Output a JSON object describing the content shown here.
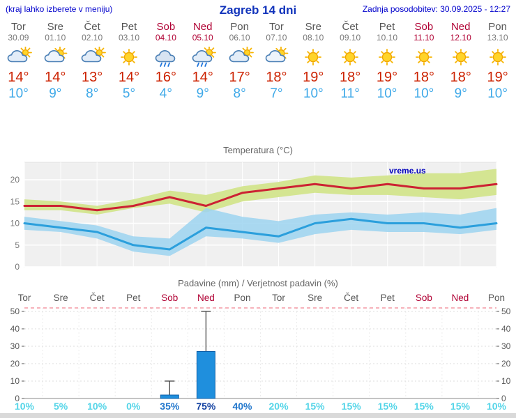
{
  "header": {
    "left_note": "(kraj lahko izberete v meniju)",
    "title": "Zagreb 14 dni",
    "last_update": "Zadnja posodobitev: 30.09.2025 - 12:27"
  },
  "days": [
    {
      "name": "Tor",
      "date": "30.09",
      "weekend": false,
      "icon": "cloudy",
      "tmax": "14°",
      "tmin": "10°",
      "prob": "10%",
      "prob_level": "low"
    },
    {
      "name": "Sre",
      "date": "01.10",
      "weekend": false,
      "icon": "partly-cloudy",
      "tmax": "14°",
      "tmin": "9°",
      "prob": "5%",
      "prob_level": "low"
    },
    {
      "name": "Čet",
      "date": "02.10",
      "weekend": false,
      "icon": "cloudy",
      "tmax": "13°",
      "tmin": "8°",
      "prob": "10%",
      "prob_level": "low"
    },
    {
      "name": "Pet",
      "date": "03.10",
      "weekend": false,
      "icon": "sunny",
      "tmax": "14°",
      "tmin": "5°",
      "prob": "0%",
      "prob_level": "low"
    },
    {
      "name": "Sob",
      "date": "04.10",
      "weekend": true,
      "icon": "rain",
      "tmax": "16°",
      "tmin": "4°",
      "prob": "35%",
      "prob_level": "mid"
    },
    {
      "name": "Ned",
      "date": "05.10",
      "weekend": true,
      "icon": "sun-showers",
      "tmax": "14°",
      "tmin": "9°",
      "prob": "75%",
      "prob_level": "high"
    },
    {
      "name": "Pon",
      "date": "06.10",
      "weekend": false,
      "icon": "cloudy",
      "tmax": "17°",
      "tmin": "8°",
      "prob": "40%",
      "prob_level": "mid"
    },
    {
      "name": "Tor",
      "date": "07.10",
      "weekend": false,
      "icon": "partly-cloudy",
      "tmax": "18°",
      "tmin": "7°",
      "prob": "20%",
      "prob_level": "low"
    },
    {
      "name": "Sre",
      "date": "08.10",
      "weekend": false,
      "icon": "sunny",
      "tmax": "19°",
      "tmin": "10°",
      "prob": "15%",
      "prob_level": "low"
    },
    {
      "name": "Čet",
      "date": "09.10",
      "weekend": false,
      "icon": "sunny",
      "tmax": "18°",
      "tmin": "11°",
      "prob": "15%",
      "prob_level": "low"
    },
    {
      "name": "Pet",
      "date": "10.10",
      "weekend": false,
      "icon": "sunny",
      "tmax": "19°",
      "tmin": "10°",
      "prob": "15%",
      "prob_level": "low"
    },
    {
      "name": "Sob",
      "date": "11.10",
      "weekend": true,
      "icon": "sunny",
      "tmax": "18°",
      "tmin": "10°",
      "prob": "15%",
      "prob_level": "low"
    },
    {
      "name": "Ned",
      "date": "12.10",
      "weekend": true,
      "icon": "sunny",
      "tmax": "18°",
      "tmin": "9°",
      "prob": "15%",
      "prob_level": "low"
    },
    {
      "name": "Pon",
      "date": "13.10",
      "weekend": false,
      "icon": "sunny",
      "tmax": "19°",
      "tmin": "10°",
      "prob": "10%",
      "prob_level": "low"
    }
  ],
  "chart_data": [
    {
      "type": "line",
      "title": "Temperatura (°C)",
      "watermark": "vreme.us",
      "x_days": [
        "Tor",
        "Sre",
        "Čet",
        "Pet",
        "Sob",
        "Ned",
        "Pon",
        "Tor",
        "Sre",
        "Čet",
        "Pet",
        "Sob",
        "Ned",
        "Pon"
      ],
      "yticks": [
        0,
        5,
        10,
        15,
        20
      ],
      "ylim": [
        0,
        24
      ],
      "grid": true,
      "series": [
        {
          "name": "tmax",
          "values": [
            14,
            14,
            13,
            14,
            16,
            14,
            17,
            18,
            19,
            18,
            19,
            18,
            18,
            19
          ]
        },
        {
          "name": "tmin",
          "values": [
            10,
            9,
            8,
            5,
            4,
            9,
            8,
            7,
            10,
            11,
            10,
            10,
            9,
            10
          ]
        },
        {
          "name": "tmax_band_upper",
          "values": [
            15.5,
            15,
            14,
            15.5,
            17.5,
            16.5,
            18.5,
            19.5,
            21,
            20.5,
            21,
            21.5,
            21.5,
            22.5
          ]
        },
        {
          "name": "tmax_band_lower",
          "values": [
            13,
            13,
            12,
            13.5,
            14.5,
            12.5,
            15,
            16,
            17,
            16.5,
            16.5,
            16,
            15.5,
            16.5
          ]
        },
        {
          "name": "tmin_band_upper",
          "values": [
            11.5,
            10.5,
            9.5,
            7,
            6.5,
            13.5,
            11.5,
            10.5,
            12,
            12.5,
            12,
            12.5,
            12,
            13.5
          ]
        },
        {
          "name": "tmin_band_lower",
          "values": [
            8.5,
            8,
            6.5,
            3.5,
            2.5,
            7,
            6.5,
            5.5,
            7.5,
            8.5,
            8,
            8,
            7.5,
            8.5
          ]
        }
      ]
    },
    {
      "type": "bar",
      "title": "Padavine (mm) / Verjetnost padavin (%)",
      "yticks": [
        0,
        10,
        20,
        30,
        40,
        50
      ],
      "ylim": [
        0,
        52
      ],
      "bars_mm": [
        0,
        0,
        0,
        0,
        2,
        27,
        0,
        0,
        0,
        0,
        0,
        0,
        0,
        0
      ],
      "whiskers_mm": [
        0,
        0,
        0,
        0,
        10,
        50,
        0,
        0,
        0,
        0,
        0,
        0,
        0,
        0
      ],
      "probabilities_pct": [
        10,
        5,
        10,
        0,
        35,
        75,
        40,
        20,
        15,
        15,
        15,
        15,
        15,
        10
      ]
    }
  ],
  "colors": {
    "link_blue": "#0000cc",
    "title_blue": "#1133bb",
    "weekend_red": "#b00033",
    "tmax_text": "#cc2200",
    "tmin_text": "#3fa9e8",
    "tmax_line": "#cc2233",
    "tmin_line": "#2b9fdc",
    "tmax_band": "#d2e48c",
    "tmin_band": "#9cd3f0",
    "bar_fill": "#1f8fdd",
    "bar_edge": "#0f5fa8",
    "prob_low": "#55d5e8",
    "prob_mid": "#2277cc",
    "prob_high": "#103fa0",
    "watermark": "#0000bb"
  }
}
